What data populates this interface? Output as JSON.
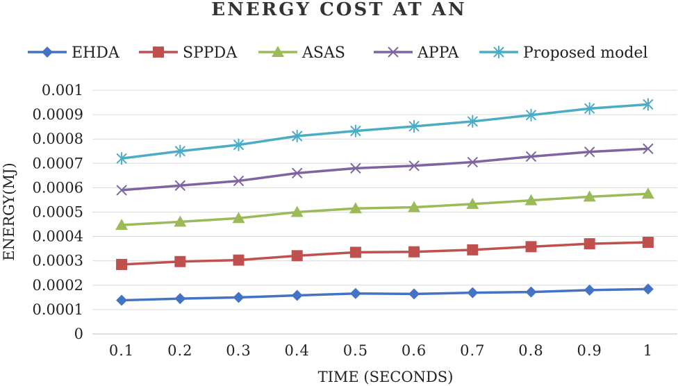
{
  "chart_data": {
    "type": "line",
    "title": "ENERGY COST AT AN",
    "xlabel": "TIME (SECONDS)",
    "ylabel": "ENERGY(MJ)",
    "categories": [
      "0.1",
      "0.2",
      "0.3",
      "0.4",
      "0.5",
      "0.6",
      "0.7",
      "0.8",
      "0.9",
      "1"
    ],
    "ylim": [
      0,
      0.001
    ],
    "yticks": [
      "0",
      "0.0001",
      "0.0002",
      "0.0003",
      "0.0004",
      "0.0005",
      "0.0006",
      "0.0007",
      "0.0008",
      "0.0009",
      "0.001"
    ],
    "legend_position": "top",
    "series": [
      {
        "name": "EHDA",
        "color": "#4472C4",
        "marker": "diamond",
        "values": [
          0.000138,
          0.000145,
          0.00015,
          0.000158,
          0.000166,
          0.000164,
          0.000169,
          0.000172,
          0.00018,
          0.000184
        ]
      },
      {
        "name": "SPPDA",
        "color": "#C0504D",
        "marker": "square",
        "values": [
          0.000285,
          0.000297,
          0.000303,
          0.000321,
          0.000335,
          0.000337,
          0.000345,
          0.000358,
          0.00037,
          0.000376
        ]
      },
      {
        "name": "ASAS",
        "color": "#9BBB59",
        "marker": "triangle",
        "values": [
          0.000447,
          0.00046,
          0.000475,
          0.0005,
          0.000515,
          0.00052,
          0.000533,
          0.000548,
          0.000563,
          0.000575
        ]
      },
      {
        "name": "APPA",
        "color": "#8064A2",
        "marker": "x",
        "values": [
          0.00059,
          0.000609,
          0.000628,
          0.00066,
          0.00068,
          0.00069,
          0.000705,
          0.000728,
          0.000747,
          0.00076
        ]
      },
      {
        "name": "Proposed model",
        "color": "#4BACC6",
        "marker": "star",
        "values": [
          0.00072,
          0.00075,
          0.000776,
          0.000812,
          0.000833,
          0.000852,
          0.000872,
          0.000898,
          0.000925,
          0.000942
        ]
      }
    ]
  }
}
